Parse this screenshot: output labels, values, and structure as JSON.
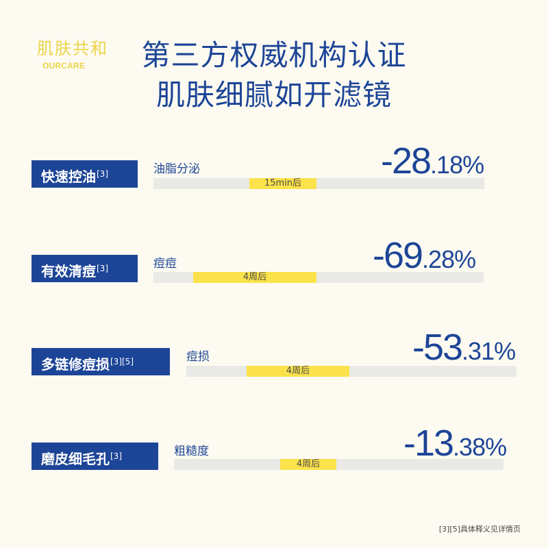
{
  "brand": {
    "name_cn": "肌肤共和",
    "name_en": "OURCARE"
  },
  "headline": {
    "line1": "第三方权威机构认证",
    "line2": "肌肤细腻如开滤镜"
  },
  "items": [
    {
      "tag": "快速控油",
      "ref": "[3]",
      "metric": "油脂分泌",
      "value_int": "-28",
      "value_dec": ".18%",
      "duration": "15min后",
      "fill_fraction": 0.18
    },
    {
      "tag": "有效清痘",
      "ref": "[3]",
      "metric": "痘痘",
      "value_int": "-69",
      "value_dec": ".28%",
      "duration": "4周后",
      "fill_fraction": 0.37
    },
    {
      "tag": "多链修痘损",
      "ref": "[3][5]",
      "metric": "痘损",
      "value_int": "-53",
      "value_dec": ".31%",
      "duration": "4周后",
      "fill_fraction": 0.31
    },
    {
      "tag": "磨皮细毛孔",
      "ref": "[3]",
      "metric": "粗糙度",
      "value_int": "-13",
      "value_dec": ".38%",
      "duration": "4周后",
      "fill_fraction": 0.17
    }
  ],
  "footnote": "[3][5]具体释义见详情页",
  "colors": {
    "accent": "#1d4597",
    "highlight": "#fbe24a",
    "logo": "#ead44a",
    "background": "#fdfbf1",
    "track": "#e9e9e6"
  }
}
